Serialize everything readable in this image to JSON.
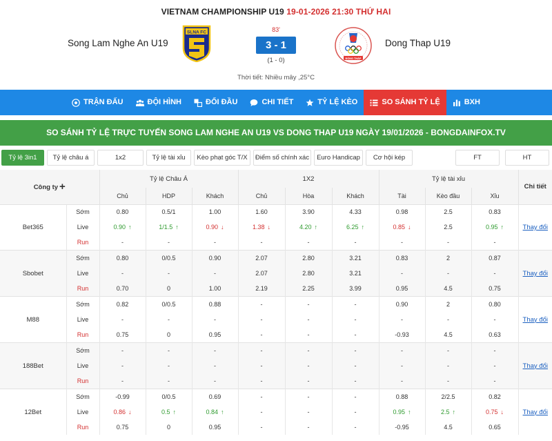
{
  "match": {
    "league": "VIETNAM CHAMPIONSHIP U19",
    "datetime": "19-01-2026 21:30 THỨ HAI",
    "home_team": "Song Lam Nghe An U19",
    "away_team": "Dong Thap U19",
    "home_logo_text": "SLNA FC",
    "away_logo_text": "ĐỒNG THÁP",
    "minute": "83'",
    "score": "3 - 1",
    "half_time": "(1 - 0)",
    "weather": "Thời tiết: Nhiều mây ,25°C"
  },
  "nav": [
    {
      "label": "TRẬN ĐẤU",
      "icon": "soccer-ball-icon"
    },
    {
      "label": "ĐỘI HÌNH",
      "icon": "team-icon"
    },
    {
      "label": "ĐỐI ĐẦU",
      "icon": "head-to-head-icon"
    },
    {
      "label": "CHI TIẾT",
      "icon": "chat-icon"
    },
    {
      "label": "TỶ LỆ KÈO",
      "icon": "star-icon"
    },
    {
      "label": "SO SÁNH TỶ LỆ",
      "icon": "list-icon",
      "active": true
    },
    {
      "label": "BXH",
      "icon": "bar-chart-icon"
    }
  ],
  "title": "SO SÁNH TỶ LỆ TRỰC TUYẾN SONG LAM NGHE AN U19 VS DONG THAP U19 NGÀY 19/01/2026 - BONGDAINFOX.TV",
  "tabs": [
    {
      "label": "Tỷ lệ 3in1",
      "active": true
    },
    {
      "label": "Tỷ lệ châu á"
    },
    {
      "label": "1x2"
    },
    {
      "label": "Tỷ lệ tài xỉu"
    },
    {
      "label": "Kèo phạt góc T/X"
    },
    {
      "label": "Điểm số chính xác"
    },
    {
      "label": "Euro Handicap"
    },
    {
      "label": "Cơ hội kép"
    },
    {
      "label": "FT"
    },
    {
      "label": "HT"
    }
  ],
  "table": {
    "company_label": "Công ty",
    "detail_label": "Chi tiết",
    "groups": [
      "Tỷ lệ Châu Á",
      "1X2",
      "Tỷ lệ tài xỉu"
    ],
    "sub_headers": [
      "Chủ",
      "HDP",
      "Khách",
      "Chủ",
      "Hòa",
      "Khách",
      "Tài",
      "Kèo đầu",
      "Xỉu"
    ],
    "detail_link": "Thay đổi",
    "colors": {
      "up": "#2e9a2e",
      "down": "#d32f2f"
    },
    "bookmakers": [
      {
        "name": "Bet365",
        "rows": [
          {
            "type": "Sớm",
            "cells": [
              "0.80",
              "0.5/1",
              "1.00",
              "1.60",
              "3.90",
              "4.33",
              "0.98",
              "2.5",
              "0.83"
            ],
            "dirs": [
              "",
              "",
              "",
              "",
              "",
              "",
              "",
              "",
              ""
            ]
          },
          {
            "type": "Live",
            "cells": [
              "0.90",
              "1/1.5",
              "0.90",
              "1.38",
              "4.20",
              "6.25",
              "0.85",
              "2.5",
              "0.95"
            ],
            "dirs": [
              "up",
              "up",
              "down",
              "down",
              "up",
              "up",
              "down",
              "",
              "up"
            ]
          },
          {
            "type": "Run",
            "cells": [
              "-",
              "-",
              "-",
              "-",
              "-",
              "-",
              "-",
              "-",
              "-"
            ],
            "dirs": [
              "",
              "",
              "",
              "",
              "",
              "",
              "",
              "",
              ""
            ]
          }
        ]
      },
      {
        "name": "Sbobet",
        "rows": [
          {
            "type": "Sớm",
            "cells": [
              "0.80",
              "0/0.5",
              "0.90",
              "2.07",
              "2.80",
              "3.21",
              "0.83",
              "2",
              "0.87"
            ],
            "dirs": [
              "",
              "",
              "",
              "",
              "",
              "",
              "",
              "",
              ""
            ]
          },
          {
            "type": "Live",
            "cells": [
              "-",
              "-",
              "-",
              "2.07",
              "2.80",
              "3.21",
              "-",
              "-",
              "-"
            ],
            "dirs": [
              "",
              "",
              "",
              "",
              "",
              "",
              "",
              "",
              ""
            ]
          },
          {
            "type": "Run",
            "cells": [
              "0.70",
              "0",
              "1.00",
              "2.19",
              "2.25",
              "3.99",
              "0.95",
              "4.5",
              "0.75"
            ],
            "dirs": [
              "",
              "",
              "",
              "",
              "",
              "",
              "",
              "",
              ""
            ]
          }
        ]
      },
      {
        "name": "M88",
        "rows": [
          {
            "type": "Sớm",
            "cells": [
              "0.82",
              "0/0.5",
              "0.88",
              "-",
              "-",
              "-",
              "0.90",
              "2",
              "0.80"
            ],
            "dirs": [
              "",
              "",
              "",
              "",
              "",
              "",
              "",
              "",
              ""
            ]
          },
          {
            "type": "Live",
            "cells": [
              "-",
              "-",
              "-",
              "-",
              "-",
              "-",
              "-",
              "-",
              "-"
            ],
            "dirs": [
              "",
              "",
              "",
              "",
              "",
              "",
              "",
              "",
              ""
            ]
          },
          {
            "type": "Run",
            "cells": [
              "0.75",
              "0",
              "0.95",
              "-",
              "-",
              "-",
              "-0.93",
              "4.5",
              "0.63"
            ],
            "dirs": [
              "",
              "",
              "",
              "",
              "",
              "",
              "",
              "",
              ""
            ]
          }
        ]
      },
      {
        "name": "188Bet",
        "rows": [
          {
            "type": "Sớm",
            "cells": [
              "-",
              "-",
              "-",
              "-",
              "-",
              "-",
              "-",
              "-",
              "-"
            ],
            "dirs": [
              "",
              "",
              "",
              "",
              "",
              "",
              "",
              "",
              ""
            ]
          },
          {
            "type": "Live",
            "cells": [
              "-",
              "-",
              "-",
              "-",
              "-",
              "-",
              "-",
              "-",
              "-"
            ],
            "dirs": [
              "",
              "",
              "",
              "",
              "",
              "",
              "",
              "",
              ""
            ]
          },
          {
            "type": "Run",
            "cells": [
              "-",
              "-",
              "-",
              "-",
              "-",
              "-",
              "-",
              "-",
              "-"
            ],
            "dirs": [
              "",
              "",
              "",
              "",
              "",
              "",
              "",
              "",
              ""
            ]
          }
        ]
      },
      {
        "name": "12Bet",
        "rows": [
          {
            "type": "Sớm",
            "cells": [
              "-0.99",
              "0/0.5",
              "0.69",
              "-",
              "-",
              "-",
              "0.88",
              "2/2.5",
              "0.82"
            ],
            "dirs": [
              "",
              "",
              "",
              "",
              "",
              "",
              "",
              "",
              ""
            ]
          },
          {
            "type": "Live",
            "cells": [
              "0.86",
              "0.5",
              "0.84",
              "-",
              "-",
              "-",
              "0.95",
              "2.5",
              "0.75"
            ],
            "dirs": [
              "down",
              "up",
              "up",
              "",
              "",
              "",
              "up",
              "up",
              "down"
            ]
          },
          {
            "type": "Run",
            "cells": [
              "0.75",
              "0",
              "0.95",
              "-",
              "-",
              "-",
              "-0.95",
              "4.5",
              "0.65"
            ],
            "dirs": [
              "",
              "",
              "",
              "",
              "",
              "",
              "",
              "",
              ""
            ]
          }
        ]
      }
    ]
  }
}
